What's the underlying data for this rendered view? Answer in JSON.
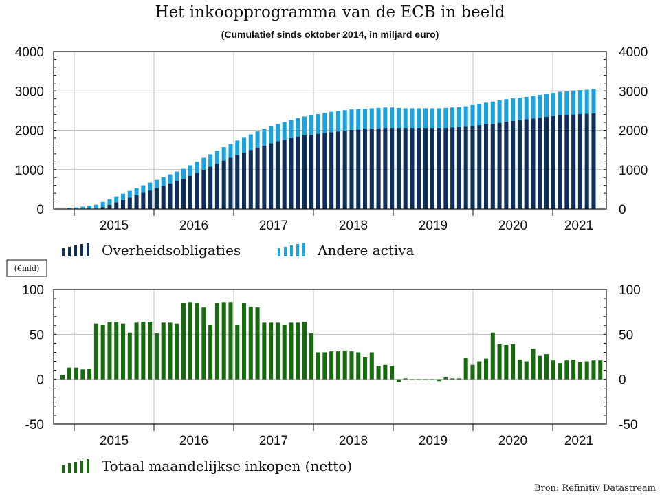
{
  "title": "Het inkoopprogramma van de ECB in beeld",
  "subtitle": "(Cumulatief sinds oktober 2014, in miljard euro)",
  "source": "Bron: Refinitiv Datastream",
  "colors": {
    "overheid": "#0d2f5a",
    "andere": "#1aa3dc",
    "totaal": "#196b10",
    "grid": "#bdbdbd"
  },
  "chart_data": [
    {
      "type": "bar",
      "stacked": true,
      "x_start": "2014-10",
      "x_interval": "month",
      "xticks": [
        "2015",
        "2016",
        "2017",
        "2018",
        "2019",
        "2020",
        "2021"
      ],
      "ylim": [
        0,
        4000
      ],
      "yticks": [
        "0",
        "1000",
        "2000",
        "3000",
        "4000"
      ],
      "grid": true,
      "legend_position": "bottom-left",
      "series": [
        {
          "name": "Overheidsobligaties",
          "color": "#0d2f5a",
          "values": [
            0,
            0,
            0,
            0,
            0,
            0,
            50,
            110,
            170,
            230,
            290,
            350,
            410,
            470,
            530,
            590,
            650,
            710,
            770,
            845,
            920,
            1000,
            1075,
            1150,
            1230,
            1300,
            1375,
            1430,
            1500,
            1560,
            1610,
            1670,
            1720,
            1760,
            1800,
            1840,
            1870,
            1890,
            1910,
            1930,
            1950,
            1970,
            1990,
            2010,
            2020,
            2030,
            2040,
            2050,
            2060,
            2060,
            2060,
            2060,
            2060,
            2060,
            2060,
            2060,
            2060,
            2060,
            2070,
            2080,
            2090,
            2110,
            2130,
            2150,
            2170,
            2190,
            2220,
            2240,
            2260,
            2280,
            2300,
            2320,
            2340,
            2360,
            2380,
            2390,
            2400,
            2410,
            2420,
            2430
          ]
        },
        {
          "name": "Andere activa",
          "color": "#1aa3dc",
          "values": [
            0,
            30,
            40,
            60,
            80,
            110,
            130,
            140,
            150,
            160,
            170,
            180,
            190,
            200,
            210,
            220,
            230,
            240,
            250,
            265,
            280,
            300,
            315,
            330,
            340,
            350,
            365,
            380,
            395,
            410,
            420,
            430,
            440,
            450,
            460,
            470,
            480,
            490,
            500,
            510,
            520,
            520,
            520,
            520,
            520,
            520,
            520,
            520,
            520,
            520,
            510,
            500,
            500,
            500,
            500,
            500,
            500,
            510,
            510,
            510,
            520,
            530,
            540,
            550,
            560,
            570,
            570,
            570,
            570,
            570,
            570,
            580,
            590,
            590,
            600,
            600,
            610,
            610,
            610,
            620
          ]
        }
      ]
    },
    {
      "type": "bar",
      "x_start": "2014-10",
      "x_interval": "month",
      "xticks": [
        "2015",
        "2016",
        "2017",
        "2018",
        "2019",
        "2020",
        "2021"
      ],
      "ylim": [
        -50,
        100
      ],
      "yticks": [
        "-50",
        "0",
        "50",
        "100"
      ],
      "unit_label": "(€mld)",
      "grid": true,
      "legend_position": "bottom-left",
      "series": [
        {
          "name": "Totaal maandelijkse inkopen (netto)",
          "color": "#196b10",
          "values": [
            5,
            13,
            13,
            11,
            12,
            62,
            61,
            64,
            64,
            62,
            52,
            63,
            64,
            64,
            51,
            63,
            63,
            62,
            85,
            86,
            85,
            80,
            61,
            85,
            86,
            86,
            61,
            85,
            81,
            80,
            63,
            63,
            63,
            61,
            63,
            63,
            64,
            51,
            30,
            30,
            31,
            31,
            32,
            31,
            30,
            25,
            30,
            15,
            16,
            15,
            -3,
            1,
            0,
            0,
            0,
            0,
            -2,
            2,
            1,
            1,
            24,
            16,
            20,
            23,
            52,
            39,
            38,
            39,
            22,
            20,
            34,
            26,
            28,
            21,
            18,
            21,
            22,
            19,
            20,
            21,
            21
          ]
        }
      ]
    }
  ]
}
